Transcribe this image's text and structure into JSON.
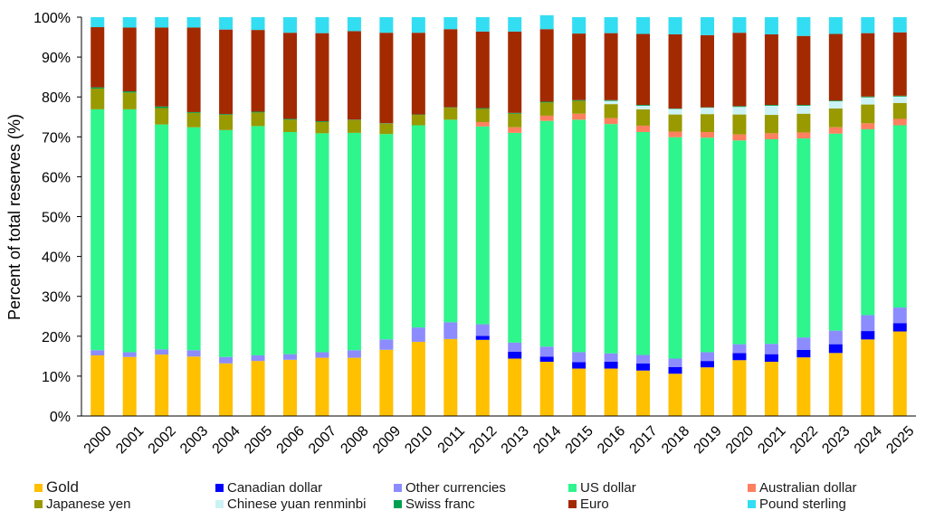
{
  "chart_data": {
    "type": "bar",
    "stacked": true,
    "title": "",
    "xlabel": "",
    "ylabel": "Percent of total reserves (%)",
    "ylim": [
      0,
      100
    ],
    "y_ticks": [
      "0%",
      "10%",
      "20%",
      "30%",
      "40%",
      "50%",
      "60%",
      "70%",
      "80%",
      "90%",
      "100%"
    ],
    "grid": false,
    "legend_position": "bottom",
    "categories": [
      "2000",
      "2001",
      "2002",
      "2003",
      "2004",
      "2005",
      "2006",
      "2007",
      "2008",
      "2009",
      "2010",
      "2011",
      "2012",
      "2013",
      "2014",
      "2015",
      "2016",
      "2017",
      "2018",
      "2019",
      "2020",
      "2021",
      "2022",
      "2023",
      "2024",
      "2025"
    ],
    "series": [
      {
        "name": "Gold",
        "color": "#FFC000",
        "values": [
          15.2,
          14.8,
          15.4,
          14.9,
          13.2,
          13.8,
          14.1,
          14.6,
          14.6,
          16.6,
          18.6,
          19.3,
          19.1,
          14.4,
          13.6,
          11.9,
          11.9,
          11.4,
          10.6,
          12.2,
          14.0,
          13.6,
          14.7,
          15.8,
          19.2,
          21.2
        ]
      },
      {
        "name": "Canadian dollar",
        "color": "#0000FF",
        "values": [
          0,
          0,
          0,
          0,
          0,
          0,
          0,
          0,
          0,
          0,
          0,
          0,
          1.0,
          1.7,
          1.3,
          1.6,
          1.7,
          1.8,
          1.7,
          1.6,
          1.8,
          1.9,
          1.9,
          2.2,
          2.1,
          2.1
        ]
      },
      {
        "name": "Other currencies",
        "color": "#8C8CFF",
        "values": [
          1.3,
          1.2,
          1.3,
          1.6,
          1.6,
          1.4,
          1.4,
          1.4,
          1.9,
          2.6,
          3.6,
          4.2,
          2.9,
          2.3,
          2.5,
          2.5,
          2.1,
          2.1,
          2.1,
          2.2,
          2.2,
          2.6,
          3.1,
          3.4,
          4.0,
          3.9
        ]
      },
      {
        "name": "US dollar",
        "color": "#2EF58C",
        "values": [
          60.4,
          60.9,
          56.4,
          55.9,
          56.9,
          57.5,
          55.7,
          54.9,
          54.5,
          51.5,
          50.7,
          50.8,
          49.6,
          52.6,
          56.6,
          58.3,
          57.5,
          55.9,
          55.5,
          53.8,
          51.1,
          51.3,
          49.9,
          49.4,
          46.6,
          45.7
        ]
      },
      {
        "name": "Australian dollar",
        "color": "#FF8060",
        "values": [
          0,
          0,
          0,
          0,
          0,
          0,
          0,
          0,
          0,
          0,
          0,
          0,
          1.1,
          1.4,
          1.3,
          1.5,
          1.5,
          1.6,
          1.4,
          1.4,
          1.5,
          1.5,
          1.5,
          1.6,
          1.5,
          1.6
        ]
      },
      {
        "name": "Japanese yen",
        "color": "#999900",
        "values": [
          5.2,
          4.2,
          4.1,
          3.6,
          3.8,
          3.4,
          3.1,
          2.8,
          3.2,
          2.6,
          2.6,
          3.0,
          3.3,
          3.4,
          3.3,
          3.2,
          3.5,
          4.1,
          4.3,
          4.5,
          5.0,
          4.6,
          4.7,
          4.7,
          4.7,
          4.0
        ]
      },
      {
        "name": "Chinese yuan renminbi",
        "color": "#CCF2F5",
        "values": [
          0,
          0,
          0,
          0,
          0,
          0,
          0,
          0,
          0,
          0,
          0,
          0,
          0,
          0,
          0,
          0,
          0.8,
          0.9,
          1.4,
          1.6,
          1.9,
          2.3,
          2.0,
          1.8,
          1.8,
          1.6
        ]
      },
      {
        "name": "Swiss franc",
        "color": "#00A050",
        "values": [
          0.3,
          0.3,
          0.4,
          0.2,
          0.2,
          0.2,
          0.2,
          0.2,
          0.1,
          0.1,
          0.1,
          0.1,
          0.2,
          0.2,
          0.2,
          0.2,
          0.2,
          0.2,
          0.1,
          0.1,
          0.2,
          0.2,
          0.2,
          0.2,
          0.2,
          0.2
        ]
      },
      {
        "name": "Euro",
        "color": "#A32A00",
        "values": [
          15.1,
          16.0,
          19.8,
          21.2,
          21.2,
          20.5,
          21.6,
          22.1,
          22.2,
          22.7,
          20.5,
          19.6,
          19.2,
          20.4,
          18.2,
          16.7,
          16.8,
          17.8,
          18.6,
          18.1,
          18.4,
          17.7,
          17.3,
          16.7,
          15.9,
          15.9
        ]
      },
      {
        "name": "Pound sterling",
        "color": "#33DDF2",
        "values": [
          2.5,
          2.6,
          2.6,
          2.6,
          3.1,
          3.2,
          3.9,
          4.0,
          3.5,
          3.9,
          3.9,
          3.0,
          3.6,
          3.6,
          3.5,
          4.1,
          4.0,
          4.2,
          4.3,
          4.5,
          3.9,
          4.3,
          4.7,
          4.2,
          4.0,
          3.8
        ]
      }
    ],
    "legend_order": [
      "Gold",
      "Canadian dollar",
      "Other currencies",
      "US dollar",
      "Australian dollar",
      "Japanese yen",
      "Chinese yuan renminbi",
      "Swiss franc",
      "Euro",
      "Pound sterling"
    ]
  }
}
